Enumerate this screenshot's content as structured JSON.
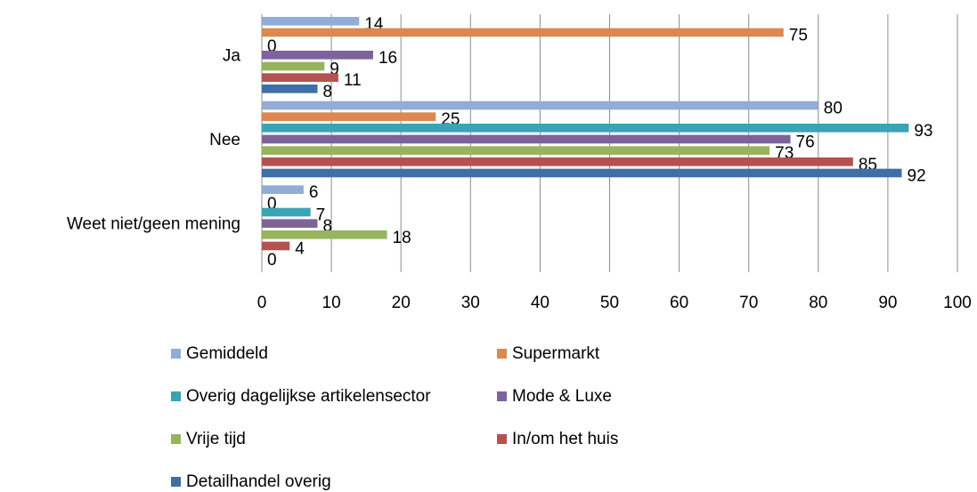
{
  "chart_data": {
    "type": "bar",
    "orientation": "horizontal",
    "categories": [
      "Ja",
      "Nee",
      "Weet niet/geen mening"
    ],
    "series": [
      {
        "name": "Gemiddeld",
        "color": "#92acd6",
        "values": [
          14,
          80,
          6
        ]
      },
      {
        "name": "Supermarkt",
        "color": "#dc8850",
        "values": [
          75,
          25,
          0
        ]
      },
      {
        "name": "Overig dagelijkse artikelensector",
        "color": "#3aa3b5",
        "values": [
          0,
          93,
          7
        ]
      },
      {
        "name": "Mode & Luxe",
        "color": "#7d639c",
        "values": [
          16,
          76,
          8
        ]
      },
      {
        "name": "Vrije tijd",
        "color": "#97b45c",
        "values": [
          9,
          73,
          18
        ]
      },
      {
        "name": "In/om het huis",
        "color": "#b5514f",
        "values": [
          11,
          85,
          4
        ]
      },
      {
        "name": "Detailhandel overig",
        "color": "#3f6ea8",
        "values": [
          8,
          92,
          0
        ]
      }
    ],
    "xlim": [
      0,
      100
    ],
    "xticks": [
      0,
      10,
      20,
      30,
      40,
      50,
      60,
      70,
      80,
      90,
      100
    ],
    "grid": true,
    "legend": "bottom"
  }
}
